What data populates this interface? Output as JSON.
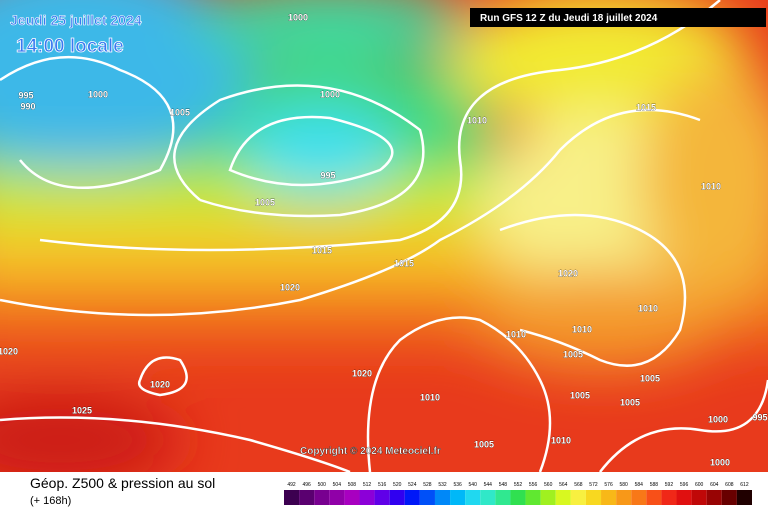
{
  "header": {
    "date": "Jeudi 25 juillet 2024",
    "time": "14:00 locale",
    "run": "Run GFS 12 Z du Jeudi 18 juillet 2024"
  },
  "isobars": [
    "1000",
    "995",
    "1000",
    "990",
    "1005",
    "1000",
    "1010",
    "1015",
    "1010",
    "995",
    "1005",
    "1015",
    "1015",
    "1020",
    "1020",
    "1010",
    "1010",
    "1010",
    "1005",
    "1020",
    "1020",
    "1020",
    "1005",
    "1010",
    "1005",
    "1005",
    "1025",
    "1000",
    "995",
    "1010",
    "1005",
    "1000"
  ],
  "copyright": "Copyright © 2024 Meteociel.fr",
  "footer": {
    "title": "Géop. Z500 & pression au sol",
    "lead": "(+ 168h)"
  },
  "legend": {
    "values": [
      492,
      496,
      500,
      504,
      508,
      512,
      516,
      520,
      524,
      528,
      532,
      536,
      540,
      544,
      548,
      552,
      556,
      560,
      564,
      568,
      572,
      576,
      580,
      584,
      588,
      592,
      596,
      600,
      604,
      608,
      612
    ],
    "colors": [
      "#3c0050",
      "#5a0070",
      "#780090",
      "#9000a8",
      "#a800c0",
      "#8c00d8",
      "#6000e8",
      "#3000f0",
      "#0018f8",
      "#0050f8",
      "#0088f8",
      "#00b8f8",
      "#20d8f0",
      "#30e8c8",
      "#30e890",
      "#30e050",
      "#60e830",
      "#a0f020",
      "#d8f820",
      "#f8f040",
      "#f8d820",
      "#f8b818",
      "#f89818",
      "#f87818",
      "#f85018",
      "#f02818",
      "#e01010",
      "#c00808",
      "#980404",
      "#680000",
      "#200000"
    ]
  }
}
